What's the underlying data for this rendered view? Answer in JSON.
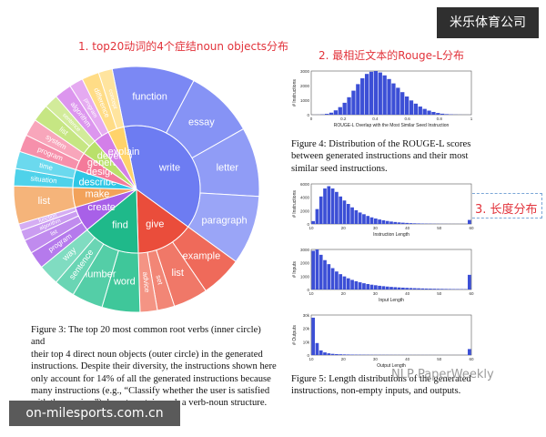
{
  "brand": "米乐体育公司",
  "annotations": {
    "a1": "1. top20动词的4个症结noun objects分布",
    "a2": "2. 最相近文本的Rouge-L分布",
    "a3": "3. 长度分布"
  },
  "fig3_caption": [
    "Figure 3: The top 20 most common root verbs (inner circle) and",
    "their top 4 direct noun objects (outer circle) in the generated",
    "instructions. Despite their diversity, the instructions shown here",
    "only account for 14% of all the generated instructions because",
    "many instructions (e.g., “Classify whether the user is satisfied",
    "with the service.”) do not contain such a verb-noun structure."
  ],
  "fig4_caption": [
    "Figure 4: Distribution of the ROUGE-L scores",
    "between generated instructions and their most",
    "similar seed instructions."
  ],
  "fig5_caption": [
    "Figure 5: Length distributions of the generated",
    "instructions, non-empty inputs, and outputs."
  ],
  "url": "on-milesports.com.cn",
  "watermark": "NLP PaperWeekly",
  "chart_data": [
    {
      "type": "sunburst",
      "inner": [
        {
          "label": "write",
          "weight": 4.2,
          "color": "#6d7cf2"
        },
        {
          "label": "give",
          "weight": 1.6,
          "color": "#ea4d3b"
        },
        {
          "label": "find",
          "weight": 1.6,
          "color": "#1fb98a"
        },
        {
          "label": "create",
          "weight": 0.7,
          "color": "#a860e8"
        },
        {
          "label": "make",
          "weight": 0.55,
          "color": "#f2a25a"
        },
        {
          "label": "describe",
          "weight": 0.5,
          "color": "#2fc7e5"
        },
        {
          "label": "design",
          "weight": 0.5,
          "color": "#f47a9a"
        },
        {
          "label": "generate",
          "weight": 0.45,
          "color": "#b9e06a"
        },
        {
          "label": "develop",
          "weight": 0.45,
          "color": "#d37fe8"
        },
        {
          "label": "explain",
          "weight": 0.45,
          "color": "#ffd36a"
        }
      ],
      "outer": [
        {
          "label": "function",
          "weight": 1.2,
          "color": "#7b88f4"
        },
        {
          "label": "essay",
          "weight": 1.0,
          "color": "#8693f5"
        },
        {
          "label": "letter",
          "weight": 1.0,
          "color": "#909cf6"
        },
        {
          "label": "paragraph",
          "weight": 1.0,
          "color": "#9aa5f7"
        },
        {
          "label": "example",
          "weight": 0.6,
          "color": "#ef6a5a"
        },
        {
          "label": "list",
          "weight": 0.5,
          "color": "#f07868"
        },
        {
          "label": "set",
          "weight": 0.25,
          "color": "#f28676"
        },
        {
          "label": "advice",
          "weight": 0.25,
          "color": "#f49484"
        },
        {
          "label": "word",
          "weight": 0.55,
          "color": "#3fc79a"
        },
        {
          "label": "number",
          "weight": 0.45,
          "color": "#54ceA7"
        },
        {
          "label": "sentence",
          "weight": 0.3,
          "color": "#6ad5b4"
        },
        {
          "label": "way",
          "weight": 0.3,
          "color": "#80dcc1"
        },
        {
          "label": "program",
          "weight": 0.25,
          "color": "#b57aec"
        },
        {
          "label": "list",
          "weight": 0.2,
          "color": "#c08bee"
        },
        {
          "label": "algorithm",
          "weight": 0.15,
          "color": "#ca9cf1"
        },
        {
          "label": "function",
          "weight": 0.1,
          "color": "#d5adf3"
        },
        {
          "label": "list",
          "weight": 0.55,
          "color": "#f5b47a"
        },
        {
          "label": "situation",
          "weight": 0.25,
          "color": "#4fd2ea"
        },
        {
          "label": "time",
          "weight": 0.25,
          "color": "#6bd9ee"
        },
        {
          "label": "program",
          "weight": 0.25,
          "color": "#f690ab"
        },
        {
          "label": "system",
          "weight": 0.25,
          "color": "#f8a6bb"
        },
        {
          "label": "list",
          "weight": 0.25,
          "color": "#c6e683"
        },
        {
          "label": "sentence",
          "weight": 0.2,
          "color": "#d2eb9a"
        },
        {
          "label": "algorithm",
          "weight": 0.25,
          "color": "#dc96ee"
        },
        {
          "label": "program",
          "weight": 0.2,
          "color": "#e5aaf1"
        },
        {
          "label": "difference",
          "weight": 0.25,
          "color": "#ffdc86"
        },
        {
          "label": "concept",
          "weight": 0.2,
          "color": "#ffe49e"
        }
      ]
    },
    {
      "type": "bar",
      "xlabel": "ROUGE-L Overlap with the Most Similar Seed Instruction",
      "ylabel": "# Instructions",
      "xlim": [
        0,
        1
      ],
      "ylim": [
        0,
        3000
      ],
      "yticks": [
        "0",
        "1000",
        "2000",
        "3000"
      ],
      "xticks": [
        "0",
        "0.2",
        "0.4",
        "0.6",
        "0.8",
        "1"
      ],
      "values": [
        2,
        5,
        20,
        60,
        140,
        300,
        520,
        820,
        1200,
        1650,
        2100,
        2500,
        2800,
        2950,
        3000,
        2900,
        2700,
        2450,
        2150,
        1850,
        1550,
        1250,
        980,
        760,
        560,
        400,
        280,
        190,
        120,
        70,
        40,
        22,
        12,
        6,
        3,
        2
      ]
    },
    {
      "type": "bar",
      "xlabel": "Instruction Length",
      "ylabel": "# Instructions",
      "xlim": [
        0,
        60
      ],
      "ylim": [
        0,
        7000
      ],
      "yticks": [
        "0",
        "2000",
        "4000",
        "6000"
      ],
      "xticks": [
        "10",
        "20",
        "30",
        "40",
        "50",
        "60"
      ],
      "values": [
        500,
        2600,
        4800,
        6200,
        6600,
        6200,
        5600,
        4800,
        4100,
        3500,
        2900,
        2400,
        2000,
        1700,
        1400,
        1150,
        950,
        780,
        640,
        520,
        420,
        340,
        270,
        220,
        180,
        140,
        110,
        90,
        70,
        55,
        45,
        35,
        28,
        22,
        18,
        14,
        11,
        9,
        7,
        5,
        700
      ]
    },
    {
      "type": "bar",
      "xlabel": "Input Length",
      "ylabel": "# Inputs",
      "xlim": [
        0,
        60
      ],
      "ylim": [
        0,
        3000
      ],
      "yticks": [
        "0",
        "1000",
        "2000",
        "3000"
      ],
      "xticks": [
        "10",
        "20",
        "30",
        "40",
        "50",
        "60"
      ],
      "values": [
        2900,
        3000,
        2600,
        2200,
        1900,
        1600,
        1350,
        1150,
        980,
        840,
        720,
        620,
        540,
        470,
        410,
        360,
        320,
        280,
        250,
        220,
        195,
        175,
        155,
        140,
        125,
        112,
        100,
        90,
        80,
        72,
        65,
        58,
        52,
        47,
        42,
        38,
        34,
        31,
        28,
        25,
        1100
      ]
    },
    {
      "type": "bar",
      "xlabel": "Output Length",
      "ylabel": "# Outputs",
      "xlim": [
        0,
        60
      ],
      "ylim": [
        0,
        30000
      ],
      "yticks": [
        "0",
        "10k",
        "20k",
        "30k"
      ],
      "xticks": [
        "10",
        "20",
        "30",
        "40",
        "50",
        "60"
      ],
      "values": [
        28000,
        9000,
        3500,
        2000,
        1300,
        900,
        700,
        560,
        460,
        390,
        330,
        290,
        260,
        230,
        210,
        190,
        170,
        155,
        140,
        130,
        120,
        110,
        100,
        92,
        85,
        78,
        72,
        66,
        60,
        55,
        50,
        46,
        42,
        38,
        35,
        32,
        29,
        26,
        24,
        22,
        4500
      ]
    }
  ]
}
